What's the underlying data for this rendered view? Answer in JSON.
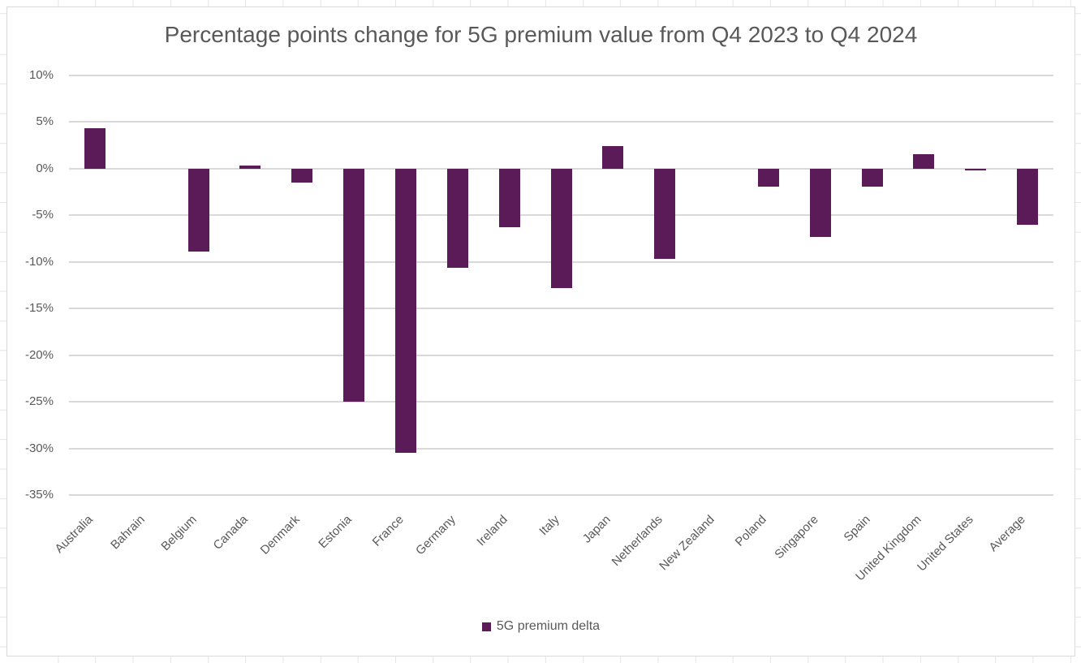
{
  "chart_data": {
    "type": "bar",
    "title": "Percentage points change for 5G premium value from Q4 2023 to Q4 2024",
    "categories": [
      "Australia",
      "Bahrain",
      "Belgium",
      "Canada",
      "Denmark",
      "Estonia",
      "France",
      "Germany",
      "Ireland",
      "Italy",
      "Japan",
      "Netherlands",
      "New Zealand",
      "Poland",
      "Singapore",
      "Spain",
      "United Kingdom",
      "United States",
      "Average"
    ],
    "series": [
      {
        "name": "5G premium delta",
        "color": "#5b1b58",
        "values": [
          4.3,
          0,
          -8.9,
          0.3,
          -1.5,
          -25,
          -30.5,
          -10.6,
          -6.3,
          -12.8,
          2.4,
          -9.7,
          0,
          -1.9,
          -7.3,
          -1.9,
          1.6,
          -0.2,
          -6
        ]
      }
    ],
    "yticks": [
      "10%",
      "5%",
      "0%",
      "-5%",
      "-10%",
      "-15%",
      "-20%",
      "-25%",
      "-30%",
      "-35%"
    ],
    "ylim": [
      -35,
      10
    ],
    "ytick_step": 5,
    "xlabel": "",
    "ylabel": "",
    "grid": true,
    "legend_position": "bottom",
    "x_label_rotation_deg": -45
  },
  "colors": {
    "bar": "#5b1b58",
    "gridline": "#d9d9d9",
    "axis_text": "#595959",
    "title_text": "#595959",
    "panel_border": "#d9d9d9",
    "spreadsheet_grid": "#e6e6e6",
    "background": "#ffffff"
  }
}
